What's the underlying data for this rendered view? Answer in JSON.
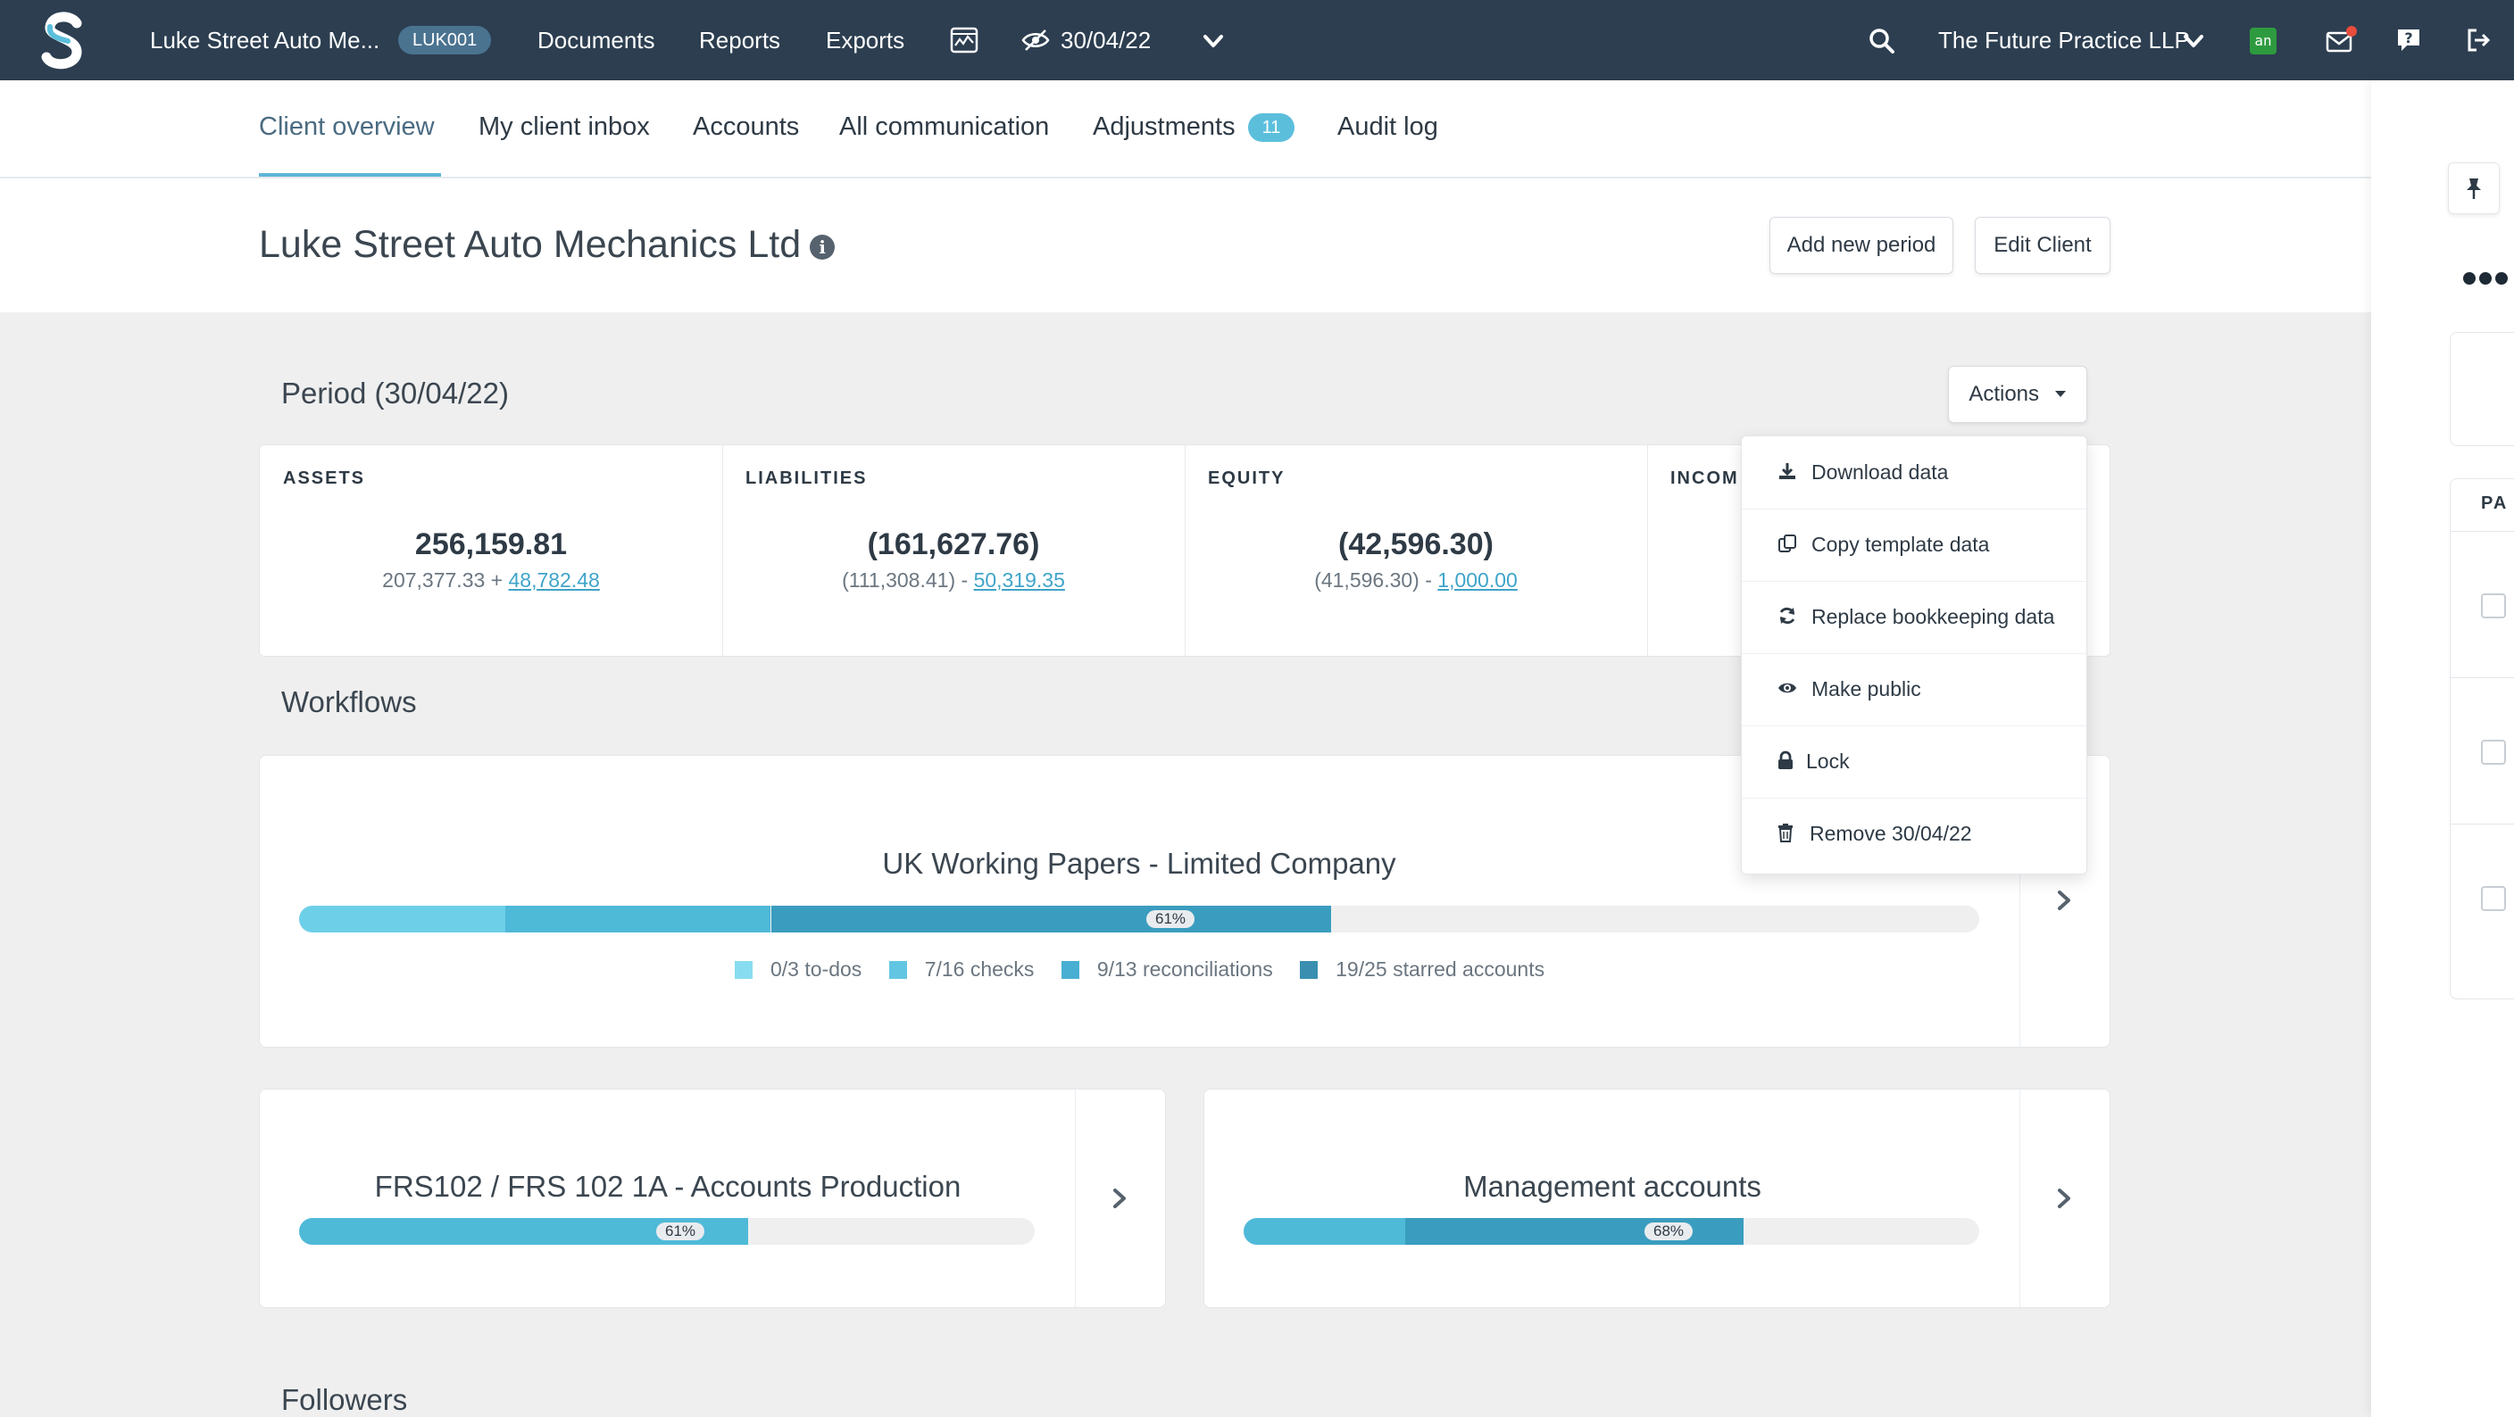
{
  "topbar": {
    "client_short": "Luke Street Auto Me...",
    "client_code": "LUK001",
    "nav": [
      "Documents",
      "Reports",
      "Exports"
    ],
    "period": "30/04/22",
    "practice": "The Future Practice LLP",
    "addon_badge": "an",
    "colors": {
      "bg": "#2c3e50",
      "accent": "#5bbfdc",
      "notification": "#e74c3c"
    }
  },
  "tabs": {
    "client_overview": "Client overview",
    "client_inbox": "My client inbox",
    "accounts": "Accounts",
    "all_communication": "All communication",
    "adjustments": "Adjustments",
    "adjustments_count": "11",
    "audit_log": "Audit log"
  },
  "client": {
    "name": "Luke Street Auto Mechanics Ltd",
    "info_glyph": "i",
    "add_period": "Add new period",
    "edit_client": "Edit Client"
  },
  "period": {
    "title": "Period (30/04/22)",
    "actions_label": "Actions",
    "stats": [
      {
        "label": "ASSETS",
        "value": "256,159.81",
        "sub_prefix": "207,377.33 + ",
        "sub_link": "48,782.48"
      },
      {
        "label": "LIABILITIES",
        "value": "(161,627.76)",
        "sub_prefix": "(111,308.41) - ",
        "sub_link": "50,319.35"
      },
      {
        "label": "EQUITY",
        "value": "(42,596.30)",
        "sub_prefix": "(41,596.30) - ",
        "sub_link": "1,000.00"
      },
      {
        "label": "INCOM"
      }
    ]
  },
  "actions_menu": [
    {
      "label": "Download data",
      "icon": "download-icon"
    },
    {
      "label": "Copy template data",
      "icon": "copy-icon"
    },
    {
      "label": "Replace bookkeeping data",
      "icon": "refresh-icon"
    },
    {
      "label": "Make public",
      "icon": "eye-icon"
    },
    {
      "label": "Lock",
      "icon": "lock-icon"
    },
    {
      "label": "Remove 30/04/22",
      "icon": "trash-icon"
    }
  ],
  "workflows": {
    "title": "Workflows",
    "main": {
      "title": "UK Working Papers - Limited Company",
      "progress": 0.61,
      "progress_label": "61%",
      "segments": [
        {
          "fraction": 0.123,
          "color": "#6dd0e8"
        },
        {
          "fraction": 0.158,
          "color": "#4fb9d8"
        },
        {
          "fraction": 0.333,
          "color": "#3a9dbf"
        }
      ],
      "legend": [
        {
          "label": "0/3 to-dos",
          "color": "#88dcef"
        },
        {
          "label": "7/16 checks",
          "color": "#62c6e2"
        },
        {
          "label": "9/13 reconciliations",
          "color": "#48aed2"
        },
        {
          "label": "19/25 starred accounts",
          "color": "#3a8fb0"
        }
      ]
    },
    "frs": {
      "title": "FRS102 / FRS 102 1A - Accounts Production",
      "progress": 0.61,
      "progress_label": "61%",
      "segments": [
        {
          "fraction": 0.61,
          "color": "#4fb9d8"
        }
      ]
    },
    "mgmt": {
      "title": "Management accounts",
      "progress": 0.68,
      "progress_label": "68%",
      "segments": [
        {
          "fraction": 0.22,
          "color": "#4fb9d8"
        },
        {
          "fraction": 0.46,
          "color": "#3a9dbf"
        }
      ]
    }
  },
  "followers": {
    "title": "Followers"
  },
  "sidepanel": {
    "header_fragment": "PA"
  }
}
